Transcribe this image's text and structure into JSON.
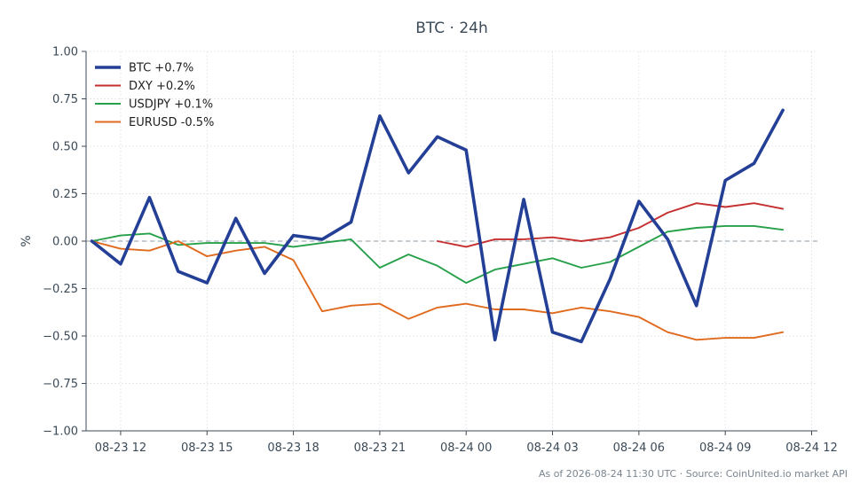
{
  "chart_data": {
    "type": "line",
    "title": "BTC · 24h",
    "xlabel": "",
    "ylabel": "%",
    "ylim": [
      -1.0,
      1.0
    ],
    "xlim": [
      "2026-08-23 10:48",
      "2026-08-24 12:12"
    ],
    "yticks": [
      "1.00",
      "0.75",
      "0.50",
      "0.25",
      "0.00",
      "−0.25",
      "−0.50",
      "−0.75",
      "−1.00"
    ],
    "ytick_values": [
      1.0,
      0.75,
      0.5,
      0.25,
      0.0,
      -0.25,
      -0.5,
      -0.75,
      -1.0
    ],
    "xticks": [
      "08-23 12",
      "08-23 15",
      "08-23 18",
      "08-23 21",
      "08-24 00",
      "08-24 03",
      "08-24 06",
      "08-24 09",
      "08-24 12"
    ],
    "xtick_values": [
      "2026-08-23 12:00",
      "2026-08-23 15:00",
      "2026-08-23 18:00",
      "2026-08-23 21:00",
      "2026-08-24 00:00",
      "2026-08-24 03:00",
      "2026-08-24 06:00",
      "2026-08-24 09:00",
      "2026-08-24 12:00"
    ],
    "grid": true,
    "legend_position": "top-left",
    "reference_line": 0,
    "series": [
      {
        "name": "BTC +0.7%",
        "color": "#233f96",
        "x": [
          "2026-08-23 11:00",
          "2026-08-23 12:00",
          "2026-08-23 13:00",
          "2026-08-23 14:00",
          "2026-08-23 15:00",
          "2026-08-23 16:00",
          "2026-08-23 17:00",
          "2026-08-23 18:00",
          "2026-08-23 19:00",
          "2026-08-23 20:00",
          "2026-08-23 21:00",
          "2026-08-23 22:00",
          "2026-08-23 23:00",
          "2026-08-24 00:00",
          "2026-08-24 01:00",
          "2026-08-24 02:00",
          "2026-08-24 03:00",
          "2026-08-24 04:00",
          "2026-08-24 05:00",
          "2026-08-24 06:00",
          "2026-08-24 07:00",
          "2026-08-24 08:00",
          "2026-08-24 09:00",
          "2026-08-24 10:00",
          "2026-08-24 11:00"
        ],
        "values": [
          0.0,
          -0.12,
          0.23,
          -0.16,
          -0.22,
          0.12,
          -0.17,
          0.03,
          0.01,
          0.1,
          0.66,
          0.36,
          0.55,
          0.48,
          -0.52,
          0.22,
          -0.48,
          -0.53,
          -0.2,
          0.21,
          0.01,
          -0.34,
          0.32,
          0.41,
          0.69
        ]
      },
      {
        "name": "DXY +0.2%",
        "color": "#c62f2f",
        "x": [
          "2026-08-23 23:00",
          "2026-08-24 00:00",
          "2026-08-24 01:00",
          "2026-08-24 02:00",
          "2026-08-24 03:00",
          "2026-08-24 04:00",
          "2026-08-24 05:00",
          "2026-08-24 06:00",
          "2026-08-24 07:00",
          "2026-08-24 08:00",
          "2026-08-24 09:00",
          "2026-08-24 10:00",
          "2026-08-24 11:00"
        ],
        "values": [
          0.0,
          -0.03,
          0.01,
          0.01,
          0.02,
          0.0,
          0.02,
          0.07,
          0.15,
          0.2,
          0.18,
          0.2,
          0.17
        ]
      },
      {
        "name": "USDJPY +0.1%",
        "color": "#27a04a",
        "x": [
          "2026-08-23 11:00",
          "2026-08-23 12:00",
          "2026-08-23 13:00",
          "2026-08-23 14:00",
          "2026-08-23 15:00",
          "2026-08-23 16:00",
          "2026-08-23 17:00",
          "2026-08-23 18:00",
          "2026-08-23 19:00",
          "2026-08-23 20:00",
          "2026-08-23 21:00",
          "2026-08-23 22:00",
          "2026-08-23 23:00",
          "2026-08-24 00:00",
          "2026-08-24 01:00",
          "2026-08-24 02:00",
          "2026-08-24 03:00",
          "2026-08-24 04:00",
          "2026-08-24 05:00",
          "2026-08-24 06:00",
          "2026-08-24 07:00",
          "2026-08-24 08:00",
          "2026-08-24 09:00",
          "2026-08-24 10:00",
          "2026-08-24 11:00"
        ],
        "values": [
          0.0,
          0.03,
          0.04,
          -0.02,
          -0.01,
          -0.01,
          -0.01,
          -0.03,
          -0.01,
          0.01,
          -0.14,
          -0.07,
          -0.13,
          -0.22,
          -0.15,
          -0.12,
          -0.09,
          -0.14,
          -0.11,
          -0.03,
          0.05,
          0.07,
          0.08,
          0.08,
          0.06
        ]
      },
      {
        "name": "EURUSD -0.5%",
        "color": "#e06a1e",
        "x": [
          "2026-08-23 11:00",
          "2026-08-23 12:00",
          "2026-08-23 13:00",
          "2026-08-23 14:00",
          "2026-08-23 15:00",
          "2026-08-23 16:00",
          "2026-08-23 17:00",
          "2026-08-23 18:00",
          "2026-08-23 19:00",
          "2026-08-23 20:00",
          "2026-08-23 21:00",
          "2026-08-23 22:00",
          "2026-08-23 23:00",
          "2026-08-24 00:00",
          "2026-08-24 01:00",
          "2026-08-24 02:00",
          "2026-08-24 03:00",
          "2026-08-24 04:00",
          "2026-08-24 05:00",
          "2026-08-24 06:00",
          "2026-08-24 07:00",
          "2026-08-24 08:00",
          "2026-08-24 09:00",
          "2026-08-24 10:00",
          "2026-08-24 11:00"
        ],
        "values": [
          0.0,
          -0.04,
          -0.05,
          0.0,
          -0.08,
          -0.05,
          -0.03,
          -0.1,
          -0.37,
          -0.34,
          -0.33,
          -0.41,
          -0.35,
          -0.33,
          -0.36,
          -0.36,
          -0.38,
          -0.35,
          -0.37,
          -0.4,
          -0.48,
          -0.52,
          -0.51,
          -0.51,
          -0.48
        ]
      }
    ],
    "footer": "As of 2026-08-24 11:30 UTC · Source: CoinUnited.io market API"
  }
}
